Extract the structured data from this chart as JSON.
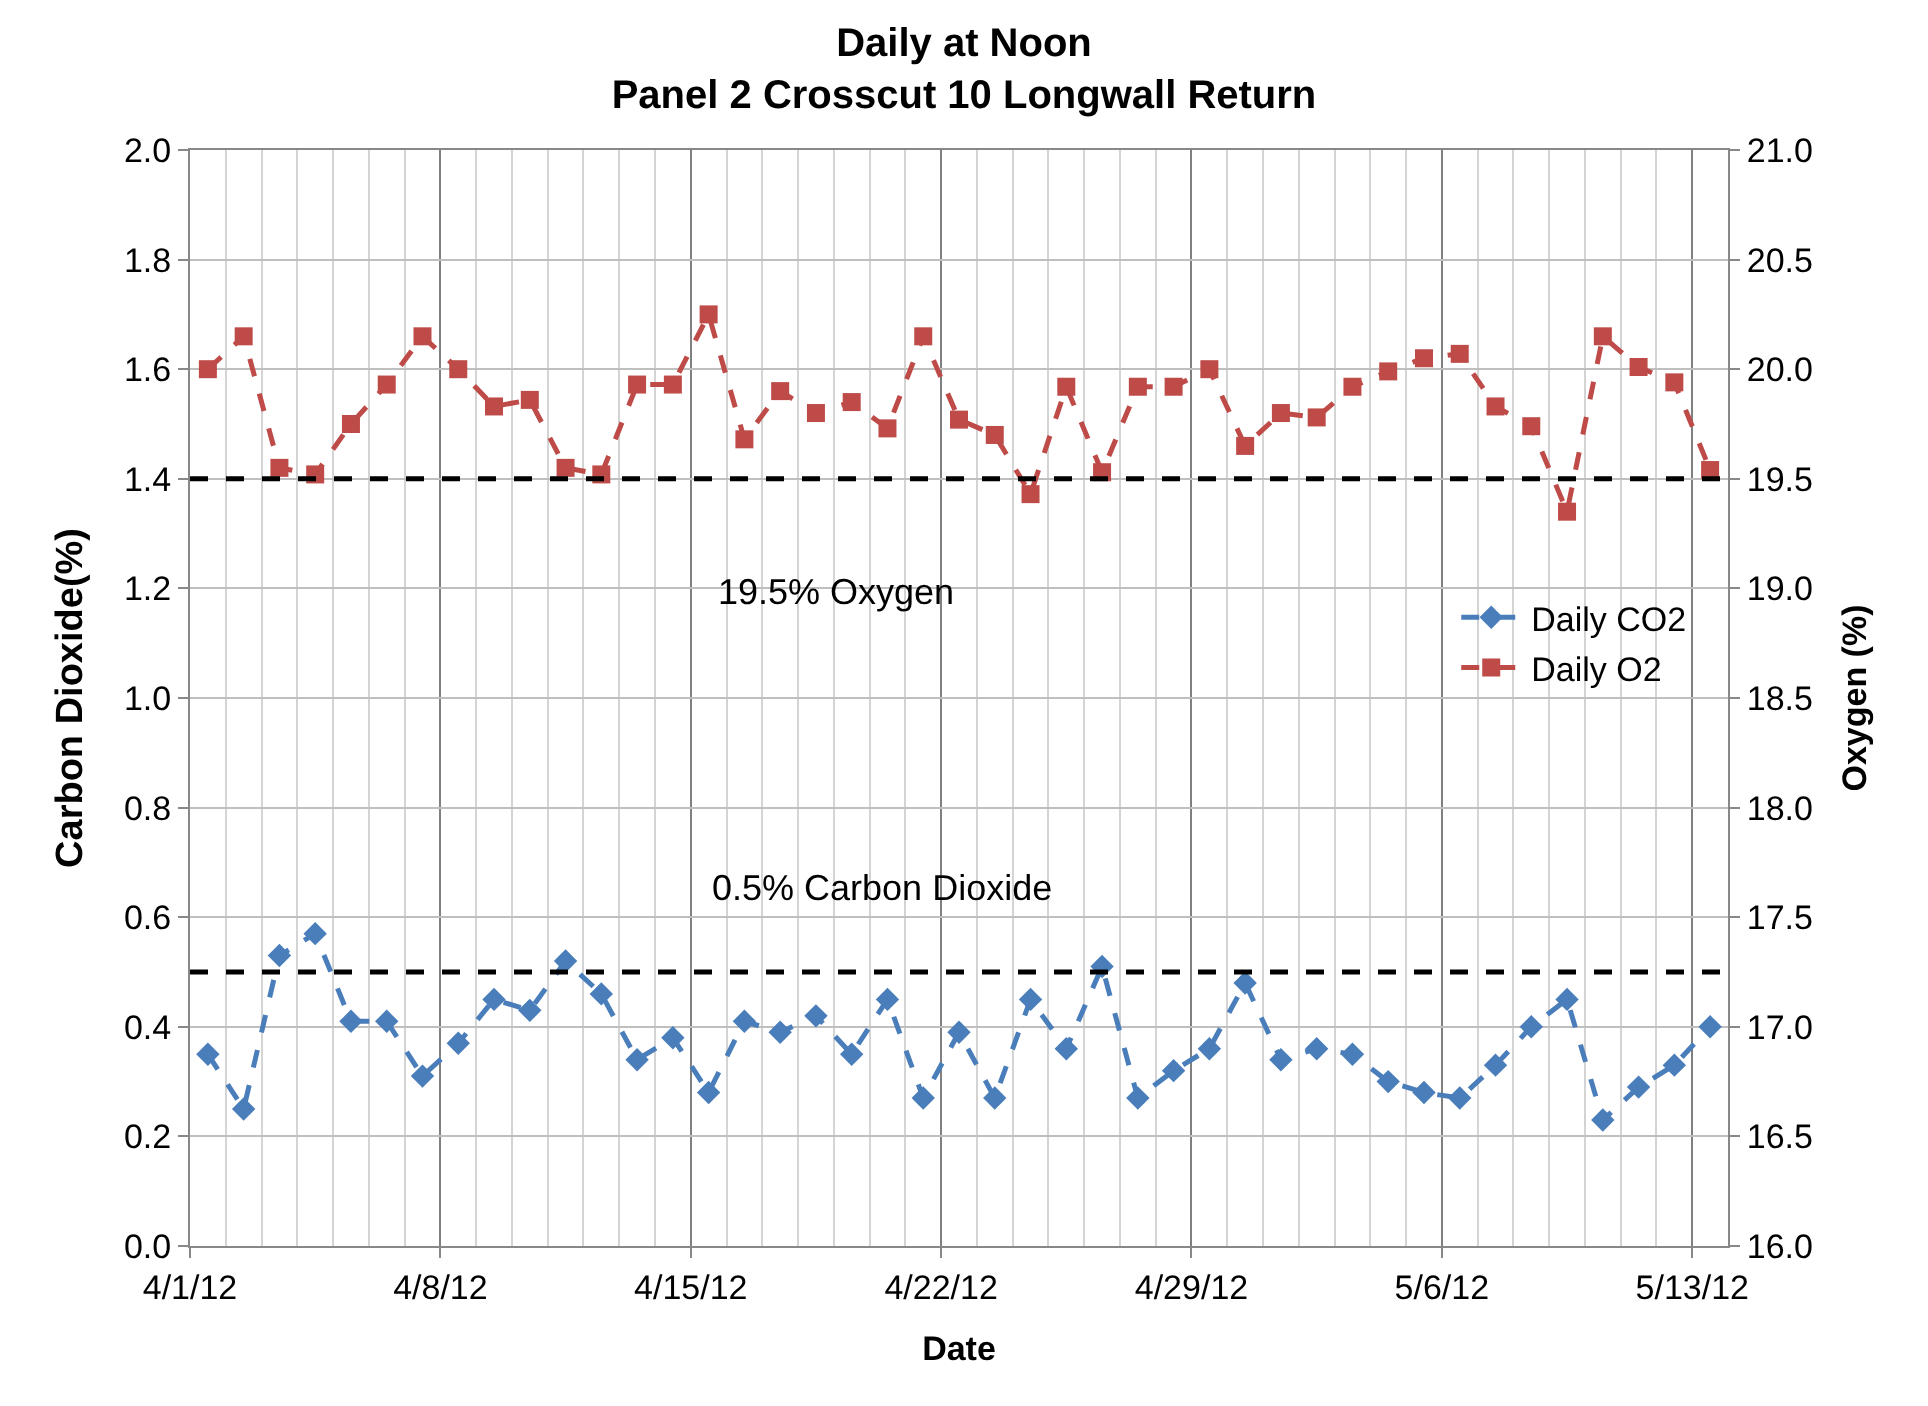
{
  "chart_data": {
    "type": "line",
    "title": "Daily at Noon\nPanel 2 Crosscut 10 Longwall Return",
    "xlabel": "Date",
    "ylabel": "Carbon Dioxide(%)",
    "y2label": "Oxygen (%)",
    "x": [
      "--04-01T12:00",
      "--04-02T12:00",
      "--04-03T12:00",
      "--04-04T12:00",
      "--04-05T12:00",
      "--04-06T12:00",
      "--04-07T12:00",
      "--04-08T12:00",
      "--04-09T12:00",
      "--04-10T12:00",
      "--04-11T12:00",
      "--04-12T12:00",
      "--04-13T12:00",
      "--04-14T12:00",
      "--04-15T12:00",
      "--04-16T12:00",
      "--04-17T12:00",
      "--04-18T12:00",
      "--04-19T12:00",
      "--04-20T12:00",
      "--04-21T12:00",
      "--04-22T12:00",
      "--04-23T12:00",
      "--04-24T12:00",
      "--04-25T12:00",
      "--04-26T12:00",
      "--04-27T12:00",
      "--04-28T12:00",
      "--04-29T12:00",
      "--04-30T12:00",
      "--05-01T12:00",
      "--05-02T12:00",
      "--05-03T12:00",
      "--05-04T12:00",
      "--05-05T12:00",
      "--05-06T12:00",
      "--05-07T12:00",
      "--05-08T12:00",
      "--05-09T12:00",
      "--05-10T12:00",
      "--05-11T12:00",
      "--05-12T12:00",
      "--05-13T12:00"
    ],
    "series": [
      {
        "name": "Daily CO2",
        "color": "#4a7ebb",
        "marker": "diamond",
        "values": [
          0.35,
          0.25,
          0.53,
          0.57,
          0.41,
          0.41,
          0.31,
          0.37,
          0.45,
          0.43,
          0.52,
          0.46,
          0.34,
          0.38,
          0.28,
          0.41,
          0.39,
          0.42,
          0.35,
          0.45,
          0.27,
          0.39,
          0.27,
          0.45,
          0.36,
          0.51,
          0.27,
          0.32,
          0.36,
          0.48,
          0.34,
          0.36,
          0.35,
          0.3,
          0.28,
          0.27,
          0.33,
          0.4,
          0.45,
          0.23,
          0.29,
          0.33,
          0.4
        ]
      },
      {
        "name": "Daily O2",
        "color": "#be4b48",
        "marker": "square",
        "axis": "y2",
        "values": [
          20.0,
          20.15,
          19.55,
          19.52,
          19.75,
          19.93,
          20.15,
          20.0,
          19.83,
          19.86,
          19.55,
          19.52,
          19.93,
          19.93,
          20.25,
          19.68,
          19.9,
          19.8,
          19.85,
          19.73,
          20.15,
          19.77,
          19.7,
          19.43,
          19.92,
          19.53,
          19.92,
          19.92,
          20.0,
          19.65,
          19.8,
          19.78,
          19.92,
          19.99,
          20.05,
          20.07,
          19.83,
          19.74,
          19.35,
          20.15,
          20.01,
          19.94,
          19.54
        ]
      }
    ],
    "xlim": [
      "--04-01",
      "--05-14"
    ],
    "xticks": [
      {
        "value": "--04-01",
        "label": "4/1/12"
      },
      {
        "value": "--04-08",
        "label": "4/8/12"
      },
      {
        "value": "--04-15",
        "label": "4/15/12"
      },
      {
        "value": "--04-22",
        "label": "4/22/12"
      },
      {
        "value": "--04-29",
        "label": "4/29/12"
      },
      {
        "value": "--05-06",
        "label": "5/6/12"
      },
      {
        "value": "--05-13",
        "label": "5/13/12"
      }
    ],
    "ylim": [
      0,
      2
    ],
    "yticks": [
      {
        "value": 0,
        "label": "0.0"
      },
      {
        "value": 0.2,
        "label": "0.2"
      },
      {
        "value": 0.4,
        "label": "0.4"
      },
      {
        "value": 0.6,
        "label": "0.6"
      },
      {
        "value": 0.8,
        "label": "0.8"
      },
      {
        "value": 1,
        "label": "1.0"
      },
      {
        "value": 1.2,
        "label": "1.2"
      },
      {
        "value": 1.4,
        "label": "1.4"
      },
      {
        "value": 1.6,
        "label": "1.6"
      },
      {
        "value": 1.8,
        "label": "1.8"
      },
      {
        "value": 2,
        "label": "2.0"
      }
    ],
    "y2lim": [
      16,
      21
    ],
    "y2ticks": [
      {
        "value": 16,
        "label": "16.0"
      },
      {
        "value": 16.5,
        "label": "16.5"
      },
      {
        "value": 17,
        "label": "17.0"
      },
      {
        "value": 17.5,
        "label": "17.5"
      },
      {
        "value": 18,
        "label": "18.0"
      },
      {
        "value": 18.5,
        "label": "18.5"
      },
      {
        "value": 19,
        "label": "19.0"
      },
      {
        "value": 19.5,
        "label": "19.5"
      },
      {
        "value": 20,
        "label": "20.0"
      },
      {
        "value": 20.5,
        "label": "20.5"
      },
      {
        "value": 21,
        "label": "21.0"
      }
    ],
    "ref_lines": [
      {
        "axis": "y",
        "value": 0.5,
        "label": "0.5% Carbon Dioxide",
        "color": "#000000",
        "line_style": "dashed"
      },
      {
        "axis": "y2",
        "value": 19.5,
        "label": "19.5% Oxygen",
        "color": "#000000",
        "line_style": "dashed"
      }
    ],
    "grid": true,
    "legend": "right",
    "line_style": "dashed"
  }
}
